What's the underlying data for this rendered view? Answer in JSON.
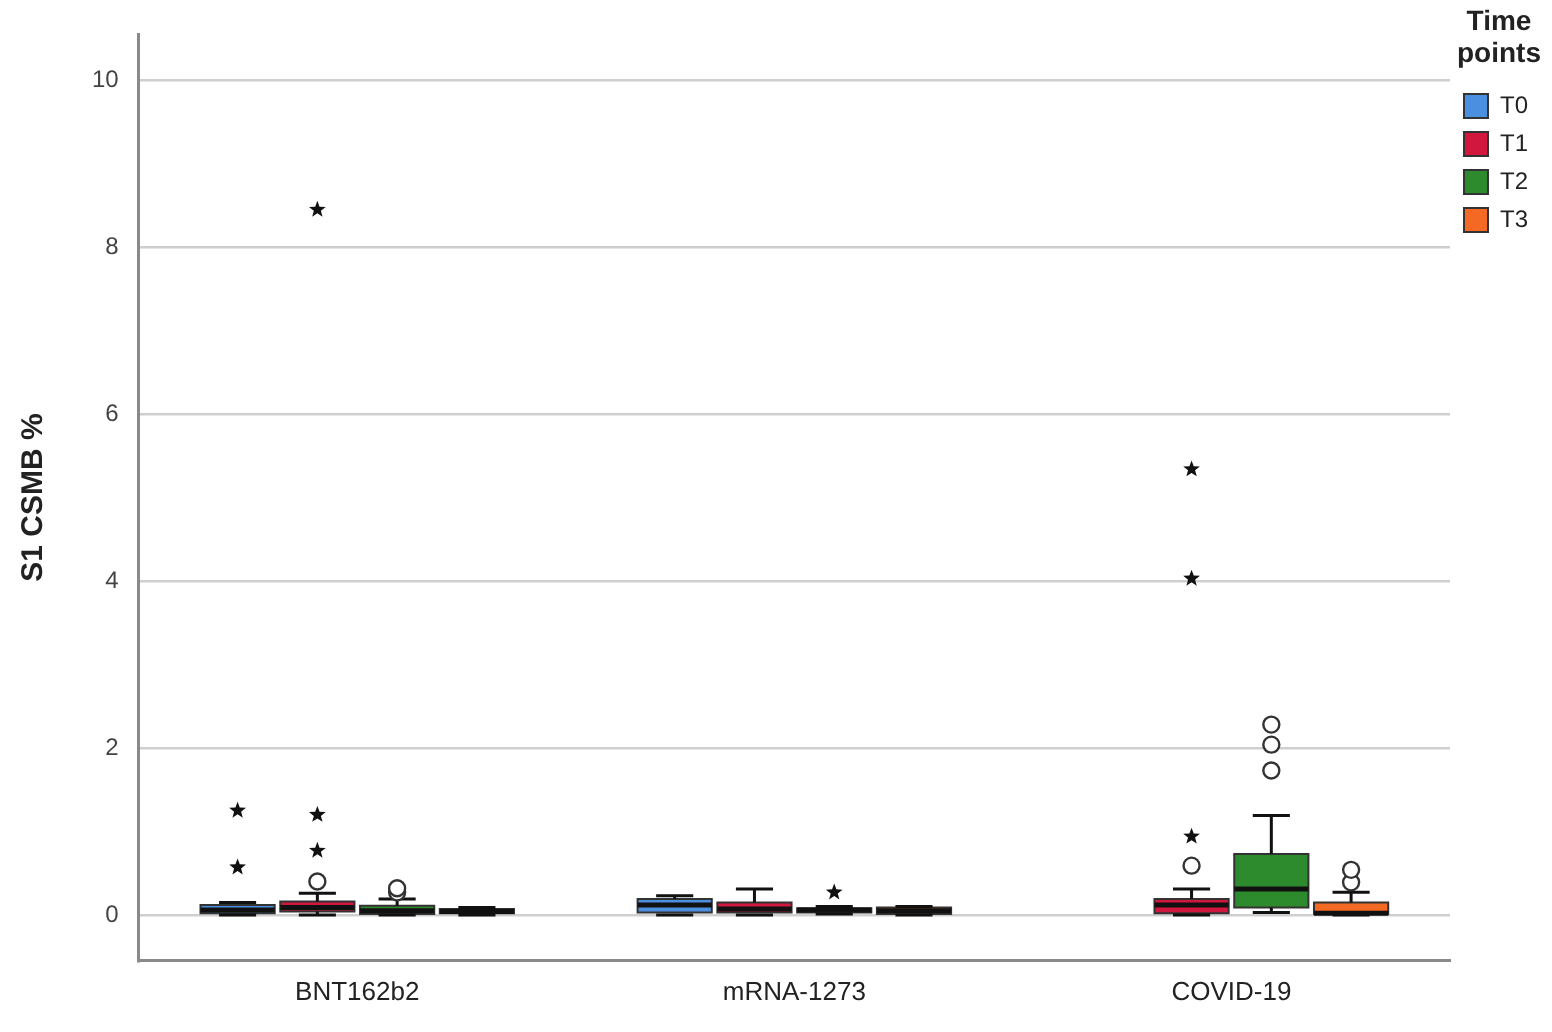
{
  "chart_data": {
    "type": "box",
    "ylabel": "S1 CSMB %",
    "legend_title": "Time points",
    "legend": "top right",
    "grid": "y",
    "ylim": [
      -0.55,
      10.55
    ],
    "yticks": [
      0,
      2,
      4,
      6,
      8,
      10
    ],
    "categories": [
      "BNT162b2",
      "mRNA-1273",
      "COVID-19"
    ],
    "series": [
      {
        "name": "T0",
        "color": "#4a8fe0",
        "boxes": [
          {
            "low": 0,
            "q1": 0.02,
            "median": 0.06,
            "q3": 0.12,
            "high": 0.15,
            "outliers": [
              0.57,
              1.25
            ]
          },
          {
            "low": 0,
            "q1": 0.03,
            "median": 0.12,
            "q3": 0.19,
            "high": 0.23
          },
          null
        ]
      },
      {
        "name": "T1",
        "color": "#d2173f",
        "boxes": [
          {
            "low": 0,
            "q1": 0.04,
            "median": 0.09,
            "q3": 0.16,
            "high": 0.26,
            "outliers": [
              0.4,
              0.77,
              1.2,
              8.45
            ]
          },
          {
            "low": 0,
            "q1": 0.03,
            "median": 0.07,
            "q3": 0.15,
            "high": 0.31
          },
          {
            "low": 0,
            "q1": 0.02,
            "median": 0.12,
            "q3": 0.19,
            "high": 0.31,
            "outliers": [
              0.59,
              0.94,
              4.03,
              5.34
            ]
          }
        ]
      },
      {
        "name": "T2",
        "color": "#2d8a2d",
        "boxes": [
          {
            "low": 0,
            "q1": 0.01,
            "median": 0.05,
            "q3": 0.11,
            "high": 0.19,
            "outliers": [
              0.27,
              0.32
            ]
          },
          {
            "low": 0.01,
            "q1": 0.03,
            "median": 0.06,
            "q3": 0.08,
            "high": 0.1,
            "outliers": [
              0.27
            ]
          },
          {
            "low": 0.03,
            "q1": 0.09,
            "median": 0.31,
            "q3": 0.73,
            "high": 1.19,
            "outliers": [
              1.73,
              2.04,
              2.28
            ]
          }
        ]
      },
      {
        "name": "T3",
        "color": "#f46a25",
        "boxes": [
          {
            "low": 0,
            "q1": 0.02,
            "median": 0.04,
            "q3": 0.07,
            "high": 0.09
          },
          {
            "low": 0,
            "q1": 0.01,
            "median": 0.05,
            "q3": 0.09,
            "high": 0.1
          },
          {
            "low": 0,
            "q1": 0.01,
            "median": 0.02,
            "q3": 0.15,
            "high": 0.27,
            "outliers": [
              0.39,
              0.54
            ]
          }
        ]
      }
    ]
  }
}
